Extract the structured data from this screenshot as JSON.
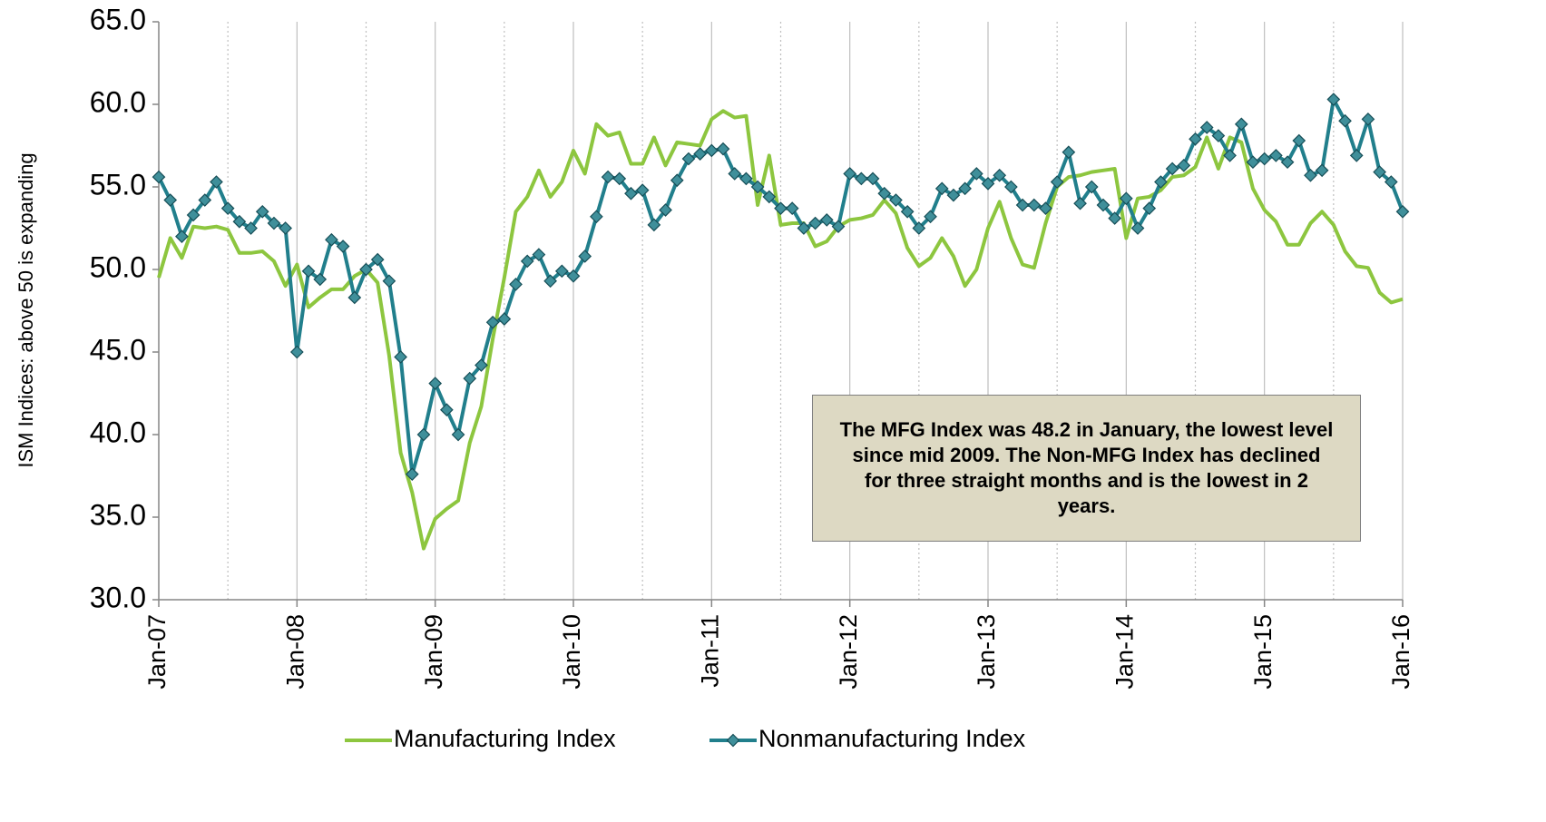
{
  "chart_data": {
    "type": "line",
    "ylabel": "ISM Indices:  above 50 is expanding",
    "annotation": "The MFG Index was 48.2 in January, the lowest level since mid 2009.  The Non-MFG Index has declined for three straight months and is the lowest in 2 years.",
    "categories": [
      "Jan-07",
      null,
      null,
      null,
      null,
      null,
      null,
      null,
      null,
      null,
      null,
      null,
      "Jan-08",
      null,
      null,
      null,
      null,
      null,
      null,
      null,
      null,
      null,
      null,
      null,
      "Jan-09",
      null,
      null,
      null,
      null,
      null,
      null,
      null,
      null,
      null,
      null,
      null,
      "Jan-10",
      null,
      null,
      null,
      null,
      null,
      null,
      null,
      null,
      null,
      null,
      null,
      "Jan-11",
      null,
      null,
      null,
      null,
      null,
      null,
      null,
      null,
      null,
      null,
      null,
      "Jan-12",
      null,
      null,
      null,
      null,
      null,
      null,
      null,
      null,
      null,
      null,
      null,
      "Jan-13",
      null,
      null,
      null,
      null,
      null,
      null,
      null,
      null,
      null,
      null,
      null,
      "Jan-14",
      null,
      null,
      null,
      null,
      null,
      null,
      null,
      null,
      null,
      null,
      null,
      "Jan-15",
      null,
      null,
      null,
      null,
      null,
      null,
      null,
      null,
      null,
      null,
      null,
      "Jan-16"
    ],
    "series": [
      {
        "name": "Manufacturing Index",
        "color": "#8dc63f",
        "marker": "none",
        "values": [
          49.5,
          51.9,
          50.7,
          52.6,
          52.5,
          52.6,
          52.4,
          51.0,
          51.0,
          51.1,
          50.5,
          49.0,
          50.3,
          47.7,
          48.3,
          48.8,
          48.8,
          49.6,
          50.0,
          49.2,
          44.8,
          38.9,
          36.5,
          33.1,
          34.9,
          35.5,
          36.0,
          39.5,
          41.7,
          45.8,
          49.5,
          53.5,
          54.4,
          56.0,
          54.4,
          55.3,
          57.2,
          55.8,
          58.8,
          58.1,
          58.3,
          56.4,
          56.4,
          58.0,
          56.3,
          57.7,
          57.6,
          57.5,
          59.1,
          59.6,
          59.2,
          59.3,
          53.9,
          56.9,
          52.7,
          52.8,
          52.8,
          51.4,
          51.7,
          52.6,
          53.0,
          53.1,
          53.3,
          54.2,
          53.4,
          51.3,
          50.2,
          50.7,
          51.9,
          50.8,
          49.0,
          50.0,
          52.5,
          54.1,
          51.9,
          50.3,
          50.1,
          52.8,
          55.0,
          55.6,
          55.7,
          55.9,
          56.0,
          56.1,
          51.9,
          54.3,
          54.4,
          54.8,
          55.6,
          55.7,
          56.2,
          58.0,
          56.1,
          58.0,
          57.7,
          54.9,
          53.6,
          52.9,
          51.5,
          51.5,
          52.8,
          53.5,
          52.7,
          51.1,
          50.2,
          50.1,
          48.6,
          48.0,
          48.2
        ]
      },
      {
        "name": "Nonmanufacturing Index",
        "color": "#217f8c",
        "marker": "diamond",
        "values": [
          55.6,
          54.2,
          52.0,
          53.3,
          54.2,
          55.3,
          53.7,
          52.9,
          52.5,
          53.5,
          52.8,
          52.5,
          45.0,
          49.9,
          49.4,
          51.8,
          51.4,
          48.3,
          50.0,
          50.6,
          49.3,
          44.7,
          37.6,
          40.0,
          43.1,
          41.5,
          40.0,
          43.4,
          44.2,
          46.8,
          47.0,
          49.1,
          50.5,
          50.9,
          49.3,
          49.9,
          49.6,
          50.8,
          53.2,
          55.6,
          55.5,
          54.6,
          54.8,
          52.7,
          53.6,
          55.4,
          56.7,
          57.0,
          57.2,
          57.3,
          55.8,
          55.5,
          55.0,
          54.4,
          53.7,
          53.7,
          52.5,
          52.8,
          53.0,
          52.6,
          55.8,
          55.5,
          55.5,
          54.6,
          54.2,
          53.5,
          52.5,
          53.2,
          54.9,
          54.5,
          54.9,
          55.8,
          55.2,
          55.7,
          55.0,
          53.9,
          53.9,
          53.7,
          55.3,
          57.1,
          54.0,
          55.0,
          53.9,
          53.1,
          54.3,
          52.5,
          53.7,
          55.3,
          56.1,
          56.3,
          57.9,
          58.6,
          58.1,
          56.9,
          58.8,
          56.5,
          56.7,
          56.9,
          56.5,
          57.8,
          55.7,
          56.0,
          60.3,
          59.0,
          56.9,
          59.1,
          55.9,
          55.3,
          53.5
        ]
      }
    ],
    "ylim": [
      30,
      65
    ],
    "yticks": [
      {
        "value": 30,
        "label": "30.0"
      },
      {
        "value": 35,
        "label": "35.0"
      },
      {
        "value": 40,
        "label": "40.0"
      },
      {
        "value": 45,
        "label": "45.0"
      },
      {
        "value": 50,
        "label": "50.0"
      },
      {
        "value": 55,
        "label": "55.0"
      },
      {
        "value": 60,
        "label": "60.0"
      },
      {
        "value": 65,
        "label": "65.0"
      }
    ],
    "grid": true,
    "legend": "bottom"
  }
}
